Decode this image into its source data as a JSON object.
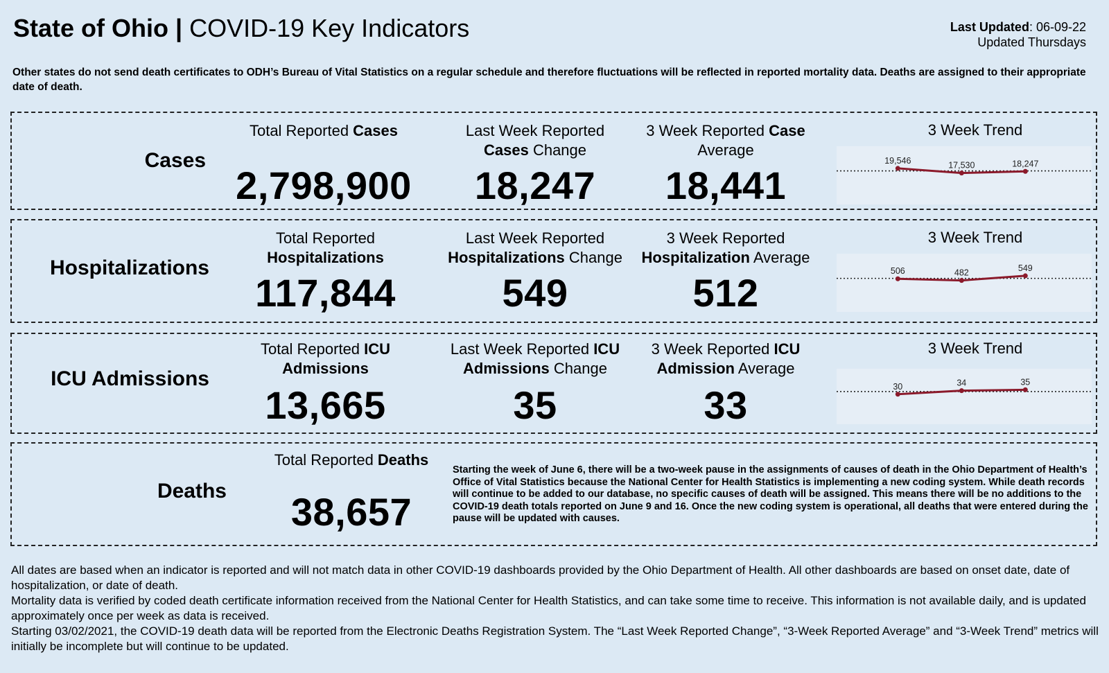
{
  "header": {
    "title_bold": "State of Ohio |",
    "title_rest": " COVID-19 Key Indicators",
    "last_updated_label": "Last Updated",
    "last_updated_value": ": 06-09-22",
    "update_frequency": "Updated Thursdays"
  },
  "notice": "Other states do not send death certificates to ODH’s Bureau of Vital Statistics on a regular schedule and therefore fluctuations will be reflected in reported mortality data. Deaths are assigned to their appropriate date of death.",
  "cases": {
    "label": "Cases",
    "total_head_a": "Total Reported ",
    "total_head_b": "Cases",
    "total": "2,798,900",
    "change_head_a": "Last Week Reported",
    "change_head_b": "Cases",
    "change_head_c": " Change",
    "change": "18,247",
    "avg_head_a": "3 Week Reported ",
    "avg_head_b": "Case",
    "avg_head_c": "Average",
    "avg": "18,441",
    "trend_title": "3 Week Trend"
  },
  "hosp": {
    "label": "Hospitalizations",
    "total_head_a": "Total Reported",
    "total_head_b": "Hospitalizations",
    "total": "117,844",
    "change_head_a": "Last Week Reported",
    "change_head_b": "Hospitalizations",
    "change_head_c": " Change",
    "change": "549",
    "avg_head_a": "3 Week Reported",
    "avg_head_b": "Hospitalization",
    "avg_head_c": " Average",
    "avg": "512",
    "trend_title": "3 Week Trend"
  },
  "icu": {
    "label": "ICU Admissions",
    "total_head_a": "Total Reported ",
    "total_head_b": "ICU",
    "total_head_c": "Admissions",
    "total": "13,665",
    "change_head_a": "Last Week Reported ",
    "change_head_b": "ICU",
    "change_head_c": "Admissions",
    "change_head_d": " Change",
    "change": "35",
    "avg_head_a": "3 Week Reported ",
    "avg_head_b": "ICU",
    "avg_head_c": "Admission",
    "avg_head_d": " Average",
    "avg": "33",
    "trend_title": "3 Week Trend"
  },
  "deaths": {
    "label": "Deaths",
    "total_head_a": "Total Reported ",
    "total_head_b": "Deaths",
    "total": "38,657",
    "note": "Starting the week of June 6, there will be a two-week pause in the assignments of causes of death in the Ohio Department of Health’s Office of Vital Statistics because the National Center for Health Statistics is implementing a new coding system. While death records will continue to be added to our database, no specific causes of death will be assigned. This means there will be no additions to the COVID-19 death totals reported on June 9 and 16. Once the new coding system is operational, all deaths that were entered during the pause will be updated with causes."
  },
  "footer": {
    "p1": "All dates are based when an indicator is reported and will not match data in other COVID-19 dashboards provided by the Ohio Department of Health. All other dashboards are based on onset date, date of hospitalization, or date of death.",
    "p2": "Mortality data is verified by coded death certificate information received from the National Center for Health Statistics, and can take some time to receive. This information is not available daily, and is updated approximately once per week as data is received.",
    "p3": "Starting 03/02/2021, the COVID-19 death data will be reported from the Electronic Deaths Registration System. The “Last Week Reported Change”, “3-Week Reported Average” and “3-Week Trend” metrics will initially be incomplete but will continue to be updated."
  },
  "colors": {
    "background": "#dce9f4",
    "trend_line": "#8b1a2b",
    "average_line": "#222222"
  },
  "chart_data": [
    {
      "type": "line",
      "title": "3 Week Trend",
      "series": [
        {
          "name": "Cases",
          "values": [
            19546,
            17530,
            18247
          ]
        }
      ],
      "data_labels": [
        "19,546",
        "17,530",
        "18,247"
      ],
      "reference_line": {
        "name": "3 Week Average",
        "value": 18441
      }
    },
    {
      "type": "line",
      "title": "3 Week Trend",
      "series": [
        {
          "name": "Hospitalizations",
          "values": [
            506,
            482,
            549
          ]
        }
      ],
      "data_labels": [
        "506",
        "482",
        "549"
      ],
      "reference_line": {
        "name": "3 Week Average",
        "value": 512
      }
    },
    {
      "type": "line",
      "title": "3 Week Trend",
      "series": [
        {
          "name": "ICU Admissions",
          "values": [
            30,
            34,
            35
          ]
        }
      ],
      "data_labels": [
        "30",
        "34",
        "35"
      ],
      "reference_line": {
        "name": "3 Week Average",
        "value": 33
      }
    }
  ]
}
